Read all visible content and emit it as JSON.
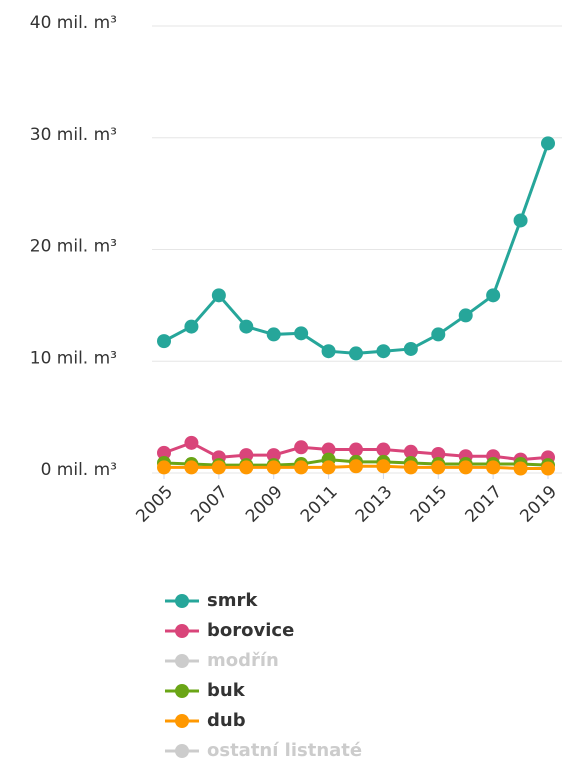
{
  "chart_data": {
    "type": "line",
    "x": [
      2005,
      2006,
      2007,
      2008,
      2009,
      2010,
      2011,
      2012,
      2013,
      2014,
      2015,
      2016,
      2017,
      2018,
      2019
    ],
    "xlim": [
      2005,
      2019
    ],
    "xticks": [
      2005,
      2007,
      2009,
      2011,
      2013,
      2015,
      2017,
      2019
    ],
    "ylim": [
      0,
      40
    ],
    "yticks": [
      {
        "value": 0,
        "label": "0 mil. m³"
      },
      {
        "value": 10,
        "label": "10 mil. m³"
      },
      {
        "value": 20,
        "label": "20 mil. m³"
      },
      {
        "value": 30,
        "label": "30 mil. m³"
      },
      {
        "value": 40,
        "label": "40 mil. m³"
      }
    ],
    "grid": true,
    "legend": "bottom",
    "series": [
      {
        "name": "smrk",
        "color": "#26a69a",
        "visible": true,
        "values": [
          11.8,
          13.1,
          15.9,
          13.1,
          12.4,
          12.5,
          10.9,
          10.7,
          10.9,
          11.1,
          12.4,
          14.1,
          15.9,
          22.6,
          29.5
        ]
      },
      {
        "name": "borovice",
        "color": "#d9457a",
        "visible": true,
        "values": [
          1.8,
          2.7,
          1.4,
          1.6,
          1.6,
          2.3,
          2.1,
          2.1,
          2.1,
          1.9,
          1.7,
          1.5,
          1.5,
          1.2,
          1.4
        ]
      },
      {
        "name": "modřín",
        "color": "#cccccc",
        "visible": false
      },
      {
        "name": "buk",
        "color": "#6aa516",
        "visible": true,
        "values": [
          0.9,
          0.8,
          0.7,
          0.7,
          0.7,
          0.8,
          1.2,
          1.0,
          1.0,
          0.9,
          0.8,
          0.8,
          0.8,
          0.8,
          0.7
        ]
      },
      {
        "name": "dub",
        "color": "#ff9800",
        "visible": true,
        "values": [
          0.5,
          0.5,
          0.5,
          0.5,
          0.5,
          0.5,
          0.5,
          0.6,
          0.6,
          0.5,
          0.5,
          0.5,
          0.5,
          0.4,
          0.4
        ]
      },
      {
        "name": "ostatní listnaté",
        "color": "#cccccc",
        "visible": false
      }
    ]
  }
}
